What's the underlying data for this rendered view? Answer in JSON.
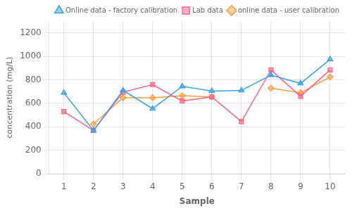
{
  "chart_data": {
    "type": "line",
    "x": [
      1,
      2,
      3,
      4,
      5,
      6,
      7,
      8,
      9,
      10
    ],
    "xlabel": "Sample",
    "ylabel": "concentration (mg/L)",
    "xlim": [
      0.5,
      10.5
    ],
    "xticks": [
      1,
      2,
      3,
      4,
      5,
      6,
      7,
      8,
      9,
      10
    ],
    "ylim": [
      0,
      1300
    ],
    "yticks": [
      0,
      200,
      400,
      600,
      800,
      1000,
      1200
    ],
    "grid": true,
    "legend": "upper right",
    "series": [
      {
        "name": "Online data - factory calibration",
        "marker": "triangle",
        "values": [
          690,
          370,
          710,
          555,
          745,
          705,
          710,
          840,
          770,
          975
        ]
      },
      {
        "name": "Lab data",
        "marker": "square",
        "values": [
          530,
          370,
          695,
          760,
          620,
          655,
          445,
          885,
          660,
          885
        ]
      },
      {
        "name": "online data - user calibration",
        "marker": "diamond",
        "values": [
          null,
          425,
          648,
          648,
          665,
          655,
          null,
          730,
          690,
          825
        ]
      }
    ]
  }
}
